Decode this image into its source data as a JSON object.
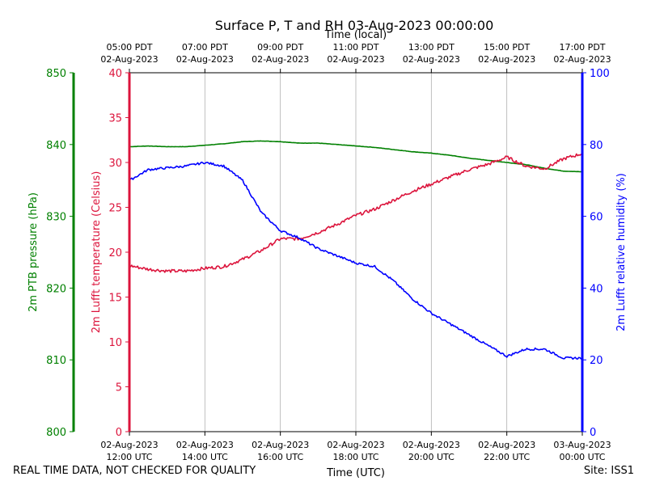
{
  "chart_data": {
    "type": "line",
    "title": "Surface P, T and RH 03-Aug-2023 00:00:00",
    "xlabel": "Time (UTC)",
    "xlabel_top": "Time (local)",
    "x_ticks_utc": [
      {
        "t": 12,
        "date": "02-Aug-2023",
        "time": "12:00 UTC"
      },
      {
        "t": 14,
        "date": "02-Aug-2023",
        "time": "14:00 UTC"
      },
      {
        "t": 16,
        "date": "02-Aug-2023",
        "time": "16:00 UTC"
      },
      {
        "t": 18,
        "date": "02-Aug-2023",
        "time": "18:00 UTC"
      },
      {
        "t": 20,
        "date": "02-Aug-2023",
        "time": "20:00 UTC"
      },
      {
        "t": 22,
        "date": "02-Aug-2023",
        "time": "22:00 UTC"
      },
      {
        "t": 24,
        "date": "03-Aug-2023",
        "time": "00:00 UTC"
      }
    ],
    "x_ticks_local": [
      {
        "t": 12,
        "time": "05:00 PDT",
        "date": "02-Aug-2023"
      },
      {
        "t": 14,
        "time": "07:00 PDT",
        "date": "02-Aug-2023"
      },
      {
        "t": 16,
        "time": "09:00 PDT",
        "date": "02-Aug-2023"
      },
      {
        "t": 18,
        "time": "11:00 PDT",
        "date": "02-Aug-2023"
      },
      {
        "t": 20,
        "time": "13:00 PDT",
        "date": "02-Aug-2023"
      },
      {
        "t": 22,
        "time": "15:00 PDT",
        "date": "02-Aug-2023"
      },
      {
        "t": 24,
        "time": "17:00 PDT",
        "date": "02-Aug-2023"
      }
    ],
    "xlim": [
      12,
      24
    ],
    "axes": {
      "pressure": {
        "label": "2m PTB pressure (hPa)",
        "ylim": [
          800,
          850
        ],
        "ticks": [
          800,
          810,
          820,
          830,
          840,
          850
        ],
        "color": "#008000"
      },
      "temperature": {
        "label": "2m Lufft temperature (Celsius)",
        "ylim": [
          0,
          40
        ],
        "ticks": [
          0,
          5,
          10,
          15,
          20,
          25,
          30,
          35,
          40
        ],
        "color": "#dc143c"
      },
      "humidity": {
        "label": "2m Lufft relative humidity (%)",
        "ylim": [
          0,
          100
        ],
        "ticks": [
          0,
          20,
          40,
          60,
          80,
          100
        ],
        "color": "#0000ff"
      }
    },
    "series": [
      {
        "name": "2m PTB pressure (hPa)",
        "axis": "pressure",
        "x": [
          12.0,
          12.5,
          13.0,
          13.5,
          14.0,
          14.5,
          15.0,
          15.5,
          16.0,
          16.5,
          17.0,
          17.5,
          18.0,
          18.5,
          19.0,
          19.5,
          20.0,
          20.5,
          21.0,
          21.5,
          22.0,
          22.5,
          23.0,
          23.5,
          24.0
        ],
        "y": [
          839.7,
          839.8,
          839.7,
          839.7,
          839.9,
          840.1,
          840.4,
          840.5,
          840.4,
          840.2,
          840.2,
          840.0,
          839.8,
          839.6,
          839.3,
          839.0,
          838.8,
          838.5,
          838.1,
          837.8,
          837.5,
          837.2,
          836.7,
          836.3,
          836.2
        ]
      },
      {
        "name": "2m Lufft temperature (Celsius)",
        "axis": "temperature",
        "x": [
          12.0,
          12.5,
          13.0,
          13.5,
          14.0,
          14.5,
          15.0,
          15.5,
          16.0,
          16.5,
          17.0,
          17.5,
          18.0,
          18.5,
          19.0,
          19.5,
          20.0,
          20.5,
          21.0,
          21.5,
          22.0,
          22.5,
          23.0,
          23.5,
          24.0
        ],
        "y": [
          18.5,
          18.1,
          17.9,
          17.9,
          18.2,
          18.4,
          19.2,
          20.2,
          21.5,
          21.5,
          22.2,
          23.1,
          24.1,
          24.8,
          25.8,
          26.8,
          27.6,
          28.4,
          29.2,
          29.8,
          30.6,
          29.6,
          29.3,
          30.4,
          31.0
        ]
      },
      {
        "name": "2m Lufft relative humidity (%)",
        "axis": "humidity",
        "x": [
          12.0,
          12.5,
          13.0,
          13.5,
          14.0,
          14.5,
          15.0,
          15.5,
          16.0,
          16.5,
          17.0,
          17.5,
          18.0,
          18.5,
          19.0,
          19.5,
          20.0,
          20.5,
          21.0,
          21.5,
          22.0,
          22.5,
          23.0,
          23.5,
          24.0
        ],
        "y": [
          70,
          73,
          73.5,
          74,
          75,
          74,
          70,
          61,
          56,
          54,
          51,
          49,
          47,
          46,
          42,
          37,
          33,
          30,
          27,
          24,
          21,
          23,
          23,
          20.5,
          20.5
        ]
      }
    ]
  },
  "footer": {
    "disclaimer": "REAL TIME DATA, NOT CHECKED FOR QUALITY",
    "site": "Site: ISS1"
  }
}
